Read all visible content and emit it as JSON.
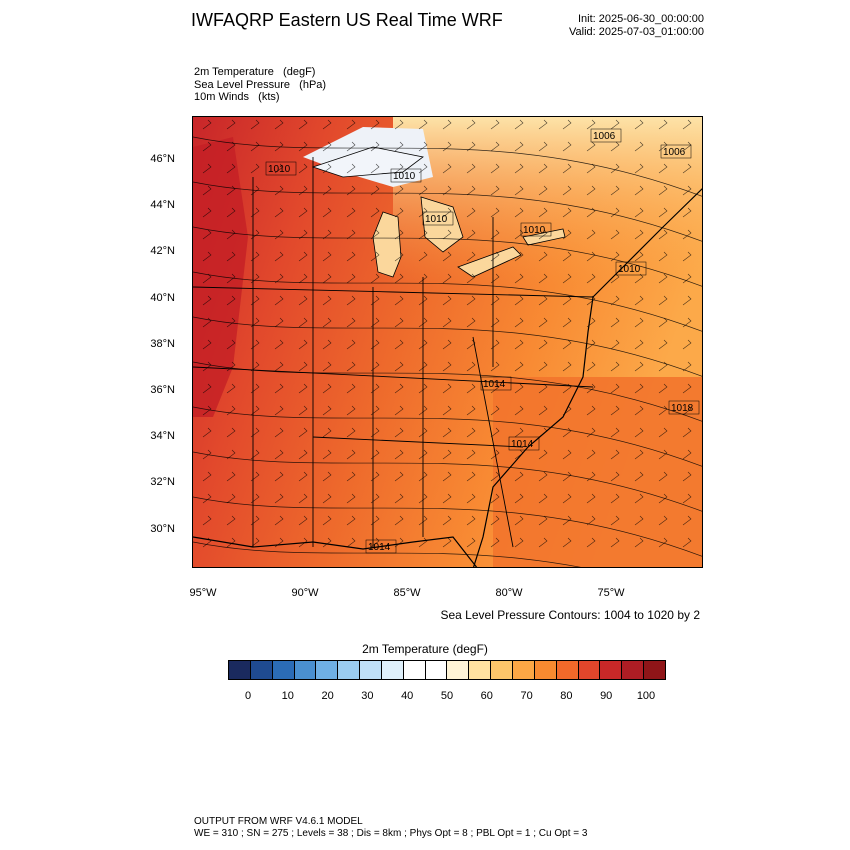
{
  "header": {
    "title": "IWFAQRP Eastern US Real Time WRF",
    "init": "Init: 2025-06-30_00:00:00",
    "valid": "Valid: 2025-07-03_01:00:00"
  },
  "fields": {
    "line1": "2m Temperature   (degF)",
    "line2": "Sea Level Pressure   (hPa)",
    "line3": "10m Winds   (kts)"
  },
  "map": {
    "lat_labels": [
      {
        "text": "46°N",
        "lat": 46
      },
      {
        "text": "44°N",
        "lat": 44
      },
      {
        "text": "42°N",
        "lat": 42
      },
      {
        "text": "40°N",
        "lat": 40
      },
      {
        "text": "38°N",
        "lat": 38
      },
      {
        "text": "36°N",
        "lat": 36
      },
      {
        "text": "34°N",
        "lat": 34
      },
      {
        "text": "32°N",
        "lat": 32
      },
      {
        "text": "30°N",
        "lat": 30
      }
    ],
    "lon_labels": [
      {
        "text": "95°W",
        "lon": -95
      },
      {
        "text": "90°W",
        "lon": -90
      },
      {
        "text": "85°W",
        "lon": -85
      },
      {
        "text": "80°W",
        "lon": -80
      },
      {
        "text": "75°W",
        "lon": -75
      }
    ],
    "pressure_labels": [
      "1006",
      "1006",
      "1010",
      "1010",
      "1010",
      "1010",
      "1010",
      "1014",
      "1014",
      "1018",
      "1014"
    ],
    "contour_note": "Sea Level Pressure Contours: 1004 to 1020 by 2"
  },
  "colorbar": {
    "title": "2m Temperature  (degF)",
    "colors": [
      "#1a2a5e",
      "#1f4b91",
      "#2b6cb6",
      "#4a90d0",
      "#6fb0e4",
      "#9bcdf0",
      "#bfe0f7",
      "#dff0fb",
      "#ffffff",
      "#ffffff",
      "#fff4d6",
      "#ffe2a0",
      "#fdc56a",
      "#fca745",
      "#f88a30",
      "#f2692a",
      "#e2462b",
      "#c82828",
      "#ae1d24",
      "#8f1518"
    ],
    "ticks": [
      "0",
      "10",
      "20",
      "30",
      "40",
      "50",
      "60",
      "70",
      "80",
      "90",
      "100"
    ]
  },
  "footer": {
    "line1": "OUTPUT FROM WRF V4.6.1 MODEL",
    "line2": "WE = 310 ; SN = 275 ; Levels = 38 ; Dis = 8km ; Phys Opt = 8 ; PBL Opt = 1 ; Cu Opt = 3"
  }
}
